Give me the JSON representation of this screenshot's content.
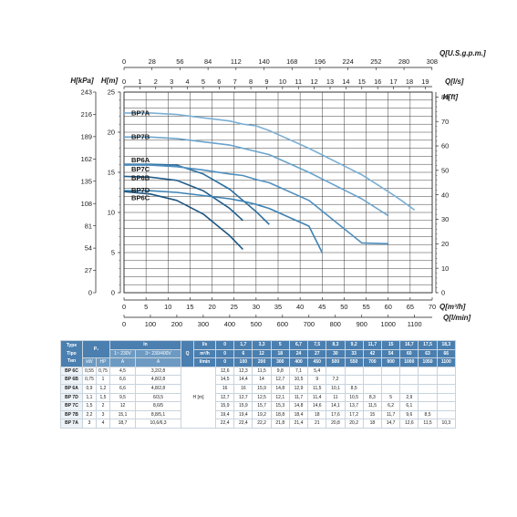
{
  "chart_data": {
    "type": "line",
    "axes": {
      "left_h_m": {
        "label": "H[m]",
        "ticks": [
          "0",
          "5",
          "10",
          "15",
          "20",
          "25"
        ],
        "range": [
          0,
          25
        ]
      },
      "left_h_kpa": {
        "label": "H[kPa]",
        "ticks": [
          "0",
          "27",
          "54",
          "81",
          "108",
          "135",
          "162",
          "189",
          "216",
          "243"
        ],
        "range": [
          0,
          243
        ]
      },
      "right_h_ft": {
        "label": "H[ft]",
        "ticks": [
          "0",
          "10",
          "20",
          "30",
          "40",
          "50",
          "60",
          "70",
          "80"
        ],
        "range": [
          0,
          82
        ]
      },
      "bottom_q_m3h": {
        "label": "Q[m³/h]",
        "ticks": [
          "0",
          "5",
          "10",
          "15",
          "20",
          "25",
          "30",
          "35",
          "40",
          "45",
          "50",
          "55",
          "60",
          "65",
          "70"
        ],
        "range": [
          0,
          70
        ]
      },
      "bottom_q_lmin": {
        "label": "Q[l/min]",
        "ticks": [
          "0",
          "100",
          "200",
          "300",
          "400",
          "500",
          "600",
          "700",
          "800",
          "900",
          "1000",
          "1100"
        ],
        "range": [
          0,
          1166.7
        ]
      },
      "top_q_ls": {
        "label": "Q[l/s]",
        "ticks": [
          "0",
          "1",
          "2",
          "3",
          "4",
          "5",
          "6",
          "7",
          "8",
          "9",
          "10",
          "11",
          "12",
          "13",
          "14",
          "15",
          "16",
          "17",
          "18",
          "19"
        ],
        "range": [
          0,
          19.44
        ]
      },
      "top_q_usgpm": {
        "label": "Q[U.S.g.p.m.]",
        "ticks": [
          "0",
          "28",
          "56",
          "84",
          "112",
          "140",
          "168",
          "196",
          "224",
          "252",
          "280",
          "308"
        ],
        "range": [
          0,
          308.2
        ]
      }
    },
    "grid": true,
    "series": [
      {
        "name": "BP7A",
        "color": "#7bafd4",
        "x": [
          0,
          6,
          12,
          18,
          24,
          27,
          30,
          33,
          42,
          54,
          60,
          63,
          66
        ],
        "y": [
          22.4,
          22.4,
          22.2,
          21.8,
          21.4,
          21,
          20.8,
          20.2,
          18,
          14.7,
          12.6,
          11.5,
          10.3
        ]
      },
      {
        "name": "BP7B",
        "color": "#6aa3cc",
        "x": [
          0,
          6,
          12,
          18,
          24,
          27,
          30,
          33,
          42,
          54,
          60
        ],
        "y": [
          19.4,
          19.4,
          19.2,
          18.8,
          18.4,
          18,
          17.6,
          17.2,
          15,
          11.7,
          9.6
        ]
      },
      {
        "name": "BP6A",
        "color": "#2d6f9e",
        "x": [
          0,
          6,
          12,
          18,
          24,
          27,
          30,
          33
        ],
        "y": [
          16,
          16,
          15.9,
          14.8,
          12.9,
          11.5,
          10.1,
          8.5
        ]
      },
      {
        "name": "BP7C",
        "color": "#4f8fbf",
        "x": [
          0,
          6,
          12,
          18,
          24,
          27,
          30,
          33,
          42,
          54,
          60
        ],
        "y": [
          15.9,
          15.9,
          15.7,
          15.3,
          14.8,
          14.6,
          14.1,
          13.7,
          11.5,
          6.2,
          6.1
        ]
      },
      {
        "name": "BP6B",
        "color": "#245f8c",
        "x": [
          0,
          6,
          12,
          18,
          24,
          27
        ],
        "y": [
          14.5,
          14.4,
          14,
          12.7,
          10.5,
          9
        ]
      },
      {
        "name": "BP7D",
        "color": "#3d82b4",
        "x": [
          0,
          6,
          12,
          18,
          24,
          27,
          30,
          33,
          42,
          45
        ],
        "y": [
          12.7,
          12.7,
          12.5,
          12.1,
          11.7,
          11.4,
          11,
          10.5,
          8.3,
          5
        ]
      },
      {
        "name": "BP6C",
        "color": "#1d5580",
        "x": [
          0,
          6,
          12,
          18,
          24,
          27
        ],
        "y": [
          12.6,
          12.3,
          11.5,
          9.8,
          7.1,
          5.4
        ]
      }
    ]
  },
  "table": {
    "header": {
      "type": "Type",
      "type_sub": "Tipo",
      "type_sub2": "Тип",
      "p1": "P₁",
      "in": "In",
      "in_1ph": "1~ 230V",
      "in_3ph": "3~ 230/400V",
      "q": "Q",
      "ls": "l/s",
      "m3h": "m³/h",
      "lmin": "l/min",
      "kw": "kW",
      "hp": "HP",
      "a1": "A",
      "a2": "A",
      "h_label": "H [m]"
    },
    "q_ls": [
      "0",
      "1,7",
      "3,3",
      "5",
      "6,7",
      "7,5",
      "8,3",
      "9,2",
      "11,7",
      "15",
      "16,7",
      "17,5",
      "18,3"
    ],
    "q_m3h": [
      "0",
      "6",
      "12",
      "18",
      "24",
      "27",
      "30",
      "33",
      "42",
      "54",
      "60",
      "63",
      "66"
    ],
    "q_lmin": [
      "0",
      "100",
      "200",
      "300",
      "400",
      "450",
      "500",
      "550",
      "700",
      "900",
      "1000",
      "1050",
      "1100"
    ],
    "rows": [
      {
        "type": "BP 6C",
        "kw": "0,55",
        "hp": "0,75",
        "a1": "4,5",
        "a3": "3,2/2,8",
        "h": [
          "12,6",
          "12,3",
          "11,5",
          "9,8",
          "7,1",
          "5,4",
          "",
          "",
          "",
          "",
          "",
          "",
          ""
        ]
      },
      {
        "type": "BP 6B",
        "kw": "0,75",
        "hp": "1",
        "a1": "6,6",
        "a3": "4,8/2,8",
        "h": [
          "14,5",
          "14,4",
          "14",
          "12,7",
          "10,5",
          "9",
          "7,2",
          "",
          "",
          "",
          "",
          "",
          ""
        ]
      },
      {
        "type": "BP 6A",
        "kw": "0,9",
        "hp": "1,2",
        "a1": "6,6",
        "a3": "4,8/2,8",
        "h": [
          "16",
          "16",
          "15,9",
          "14,8",
          "12,9",
          "11,5",
          "10,1",
          "8,5",
          "",
          "",
          "",
          "",
          ""
        ]
      },
      {
        "type": "BP 7D",
        "kw": "1,1",
        "hp": "1,5",
        "a1": "9,5",
        "a3": "6/3,5",
        "h": [
          "12,7",
          "12,7",
          "12,5",
          "12,1",
          "11,7",
          "11,4",
          "11",
          "10,5",
          "8,3",
          "5",
          "2,9",
          "",
          ""
        ]
      },
      {
        "type": "BP 7C",
        "kw": "1,5",
        "hp": "2",
        "a1": "12",
        "a3": "8,6/5",
        "h": [
          "15,9",
          "15,9",
          "15,7",
          "15,3",
          "14,8",
          "14,6",
          "14,1",
          "13,7",
          "11,5",
          "6,2",
          "6,1",
          "",
          ""
        ]
      },
      {
        "type": "BP 7B",
        "kw": "2,2",
        "hp": "3",
        "a1": "15,1",
        "a3": "8,8/5,1",
        "h": [
          "19,4",
          "19,4",
          "19,2",
          "18,8",
          "18,4",
          "18",
          "17,6",
          "17,2",
          "15",
          "11,7",
          "9,6",
          "8,5",
          ""
        ]
      },
      {
        "type": "BP 7A",
        "kw": "3",
        "hp": "4",
        "a1": "18,7",
        "a3": "10,6/6,3",
        "h": [
          "22,4",
          "22,4",
          "22,2",
          "21,8",
          "21,4",
          "21",
          "20,8",
          "20,2",
          "18",
          "14,7",
          "12,6",
          "11,5",
          "10,3"
        ]
      }
    ]
  }
}
